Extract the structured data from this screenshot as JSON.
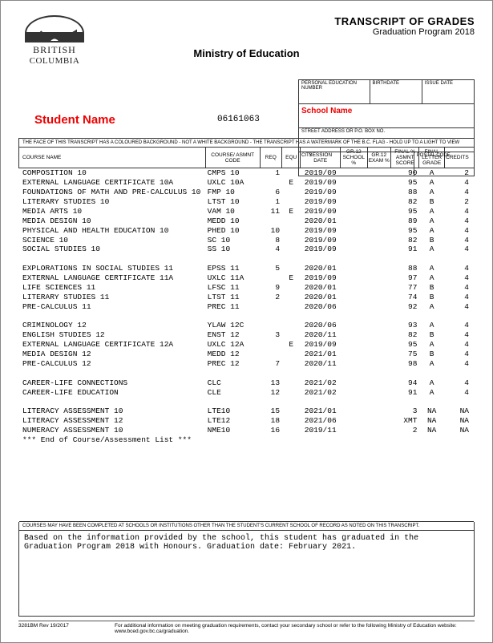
{
  "header": {
    "logo_line1": "BRITISH",
    "logo_line2": "COLUMBIA",
    "ministry": "Ministry of Education",
    "title1": "TRANSCRIPT OF GRADES",
    "title2": "Graduation Program 2018"
  },
  "info": {
    "pen_label": "PERSONAL EDUCATION NUMBER",
    "birth_label": "BIRTHDATE",
    "issue_label": "ISSUE DATE",
    "school_label": "",
    "school_name": "School Name",
    "addr_label": "STREET ADDRESS OR P.O. BOX NO.",
    "city_label": "CITY",
    "postal_label": "POSTAL CODE"
  },
  "student": {
    "name": "Student Name",
    "id": "06161063"
  },
  "disclaimer": "THE FACE OF THIS TRANSCRIPT HAS A COLOURED BACKGROUND - NOT A WHITE BACKGROUND - THE TRANSCRIPT HAS A WATERMARK OF THE B.C. FLAG - HOLD UP TO A LIGHT TO VIEW",
  "columns": {
    "name": "COURSE NAME",
    "code": "COURSE/ ASMNT CODE",
    "req": "REQ",
    "equ": "EQU",
    "sess": "SESSION DATE",
    "sch": "GR.12 SCHOOL %",
    "exam": "GR.12 EXAM %",
    "final": "FINAL % ASMNT SCORE",
    "letter": "FINAL LETTER GRADE",
    "cred": "CREDITS"
  },
  "groups": [
    [
      {
        "name": "COMPOSITION 10",
        "code": "CMPS 10",
        "req": "1",
        "equ": "",
        "sess": "2019/09",
        "sch": "",
        "exam": "",
        "final": "90",
        "letter": "A",
        "cred": "2"
      },
      {
        "name": "EXTERNAL LANGUAGE CERTIFICATE 10A",
        "code": "UXLC 10A",
        "req": "",
        "equ": "E",
        "sess": "2019/09",
        "sch": "",
        "exam": "",
        "final": "95",
        "letter": "A",
        "cred": "4"
      },
      {
        "name": "FOUNDATIONS OF MATH AND PRE-CALCULUS 10",
        "code": "FMP 10",
        "req": "6",
        "equ": "",
        "sess": "2019/09",
        "sch": "",
        "exam": "",
        "final": "88",
        "letter": "A",
        "cred": "4"
      },
      {
        "name": "LITERARY STUDIES 10",
        "code": "LTST 10",
        "req": "1",
        "equ": "",
        "sess": "2019/09",
        "sch": "",
        "exam": "",
        "final": "82",
        "letter": "B",
        "cred": "2"
      },
      {
        "name": "MEDIA ARTS 10",
        "code": "VAM 10",
        "req": "11",
        "equ": "E",
        "sess": "2019/09",
        "sch": "",
        "exam": "",
        "final": "95",
        "letter": "A",
        "cred": "4"
      },
      {
        "name": "MEDIA DESIGN 10",
        "code": "MEDD 10",
        "req": "",
        "equ": "",
        "sess": "2020/01",
        "sch": "",
        "exam": "",
        "final": "89",
        "letter": "A",
        "cred": "4"
      },
      {
        "name": "PHYSICAL AND HEALTH EDUCATION 10",
        "code": "PHED 10",
        "req": "10",
        "equ": "",
        "sess": "2019/09",
        "sch": "",
        "exam": "",
        "final": "95",
        "letter": "A",
        "cred": "4"
      },
      {
        "name": "SCIENCE 10",
        "code": "SC 10",
        "req": "8",
        "equ": "",
        "sess": "2019/09",
        "sch": "",
        "exam": "",
        "final": "82",
        "letter": "B",
        "cred": "4"
      },
      {
        "name": "SOCIAL STUDIES 10",
        "code": "SS 10",
        "req": "4",
        "equ": "",
        "sess": "2019/09",
        "sch": "",
        "exam": "",
        "final": "91",
        "letter": "A",
        "cred": "4"
      }
    ],
    [
      {
        "name": "EXPLORATIONS IN SOCIAL STUDIES 11",
        "code": "EPSS 11",
        "req": "5",
        "equ": "",
        "sess": "2020/01",
        "sch": "",
        "exam": "",
        "final": "88",
        "letter": "A",
        "cred": "4"
      },
      {
        "name": "EXTERNAL LANGUAGE CERTIFICATE 11A",
        "code": "UXLC 11A",
        "req": "",
        "equ": "E",
        "sess": "2019/09",
        "sch": "",
        "exam": "",
        "final": "97",
        "letter": "A",
        "cred": "4"
      },
      {
        "name": "LIFE SCIENCES 11",
        "code": "LFSC 11",
        "req": "9",
        "equ": "",
        "sess": "2020/01",
        "sch": "",
        "exam": "",
        "final": "77",
        "letter": "B",
        "cred": "4"
      },
      {
        "name": "LITERARY STUDIES 11",
        "code": "LTST 11",
        "req": "2",
        "equ": "",
        "sess": "2020/01",
        "sch": "",
        "exam": "",
        "final": "74",
        "letter": "B",
        "cred": "4"
      },
      {
        "name": "PRE-CALCULUS 11",
        "code": "PREC 11",
        "req": "",
        "equ": "",
        "sess": "2020/06",
        "sch": "",
        "exam": "",
        "final": "92",
        "letter": "A",
        "cred": "4"
      }
    ],
    [
      {
        "name": "CRIMINOLOGY 12",
        "code": "YLAW 12C",
        "req": "",
        "equ": "",
        "sess": "2020/06",
        "sch": "",
        "exam": "",
        "final": "93",
        "letter": "A",
        "cred": "4"
      },
      {
        "name": "ENGLISH STUDIES 12",
        "code": "ENST 12",
        "req": "3",
        "equ": "",
        "sess": "2020/11",
        "sch": "",
        "exam": "",
        "final": "82",
        "letter": "B",
        "cred": "4"
      },
      {
        "name": "EXTERNAL LANGUAGE CERTIFICATE 12A",
        "code": "UXLC 12A",
        "req": "",
        "equ": "E",
        "sess": "2019/09",
        "sch": "",
        "exam": "",
        "final": "95",
        "letter": "A",
        "cred": "4"
      },
      {
        "name": "MEDIA DESIGN 12",
        "code": "MEDD 12",
        "req": "",
        "equ": "",
        "sess": "2021/01",
        "sch": "",
        "exam": "",
        "final": "75",
        "letter": "B",
        "cred": "4"
      },
      {
        "name": "PRE-CALCULUS 12",
        "code": "PREC 12",
        "req": "7",
        "equ": "",
        "sess": "2020/11",
        "sch": "",
        "exam": "",
        "final": "98",
        "letter": "A",
        "cred": "4"
      }
    ],
    [
      {
        "name": "CAREER-LIFE CONNECTIONS",
        "code": "CLC",
        "req": "13",
        "equ": "",
        "sess": "2021/02",
        "sch": "",
        "exam": "",
        "final": "94",
        "letter": "A",
        "cred": "4"
      },
      {
        "name": "CAREER-LIFE EDUCATION",
        "code": "CLE",
        "req": "12",
        "equ": "",
        "sess": "2021/02",
        "sch": "",
        "exam": "",
        "final": "91",
        "letter": "A",
        "cred": "4"
      }
    ],
    [
      {
        "name": "LITERACY ASSESSMENT 10",
        "code": "LTE10",
        "req": "15",
        "equ": "",
        "sess": "2021/01",
        "sch": "",
        "exam": "",
        "final": "3",
        "letter": "NA",
        "cred": "NA"
      },
      {
        "name": "LITERACY ASSESSMENT 12",
        "code": "LTE12",
        "req": "18",
        "equ": "",
        "sess": "2021/06",
        "sch": "",
        "exam": "",
        "final": "XMT",
        "letter": "NA",
        "cred": "NA"
      },
      {
        "name": "NUMERACY ASSESSMENT 10",
        "code": "NME10",
        "req": "16",
        "equ": "",
        "sess": "2019/11",
        "sch": "",
        "exam": "",
        "final": "2",
        "letter": "NA",
        "cred": "NA"
      },
      {
        "name": "*** End of Course/Assessment List ***",
        "code": "",
        "req": "",
        "equ": "",
        "sess": "",
        "sch": "",
        "exam": "",
        "final": "",
        "letter": "",
        "cred": ""
      }
    ]
  ],
  "footer_note": "COURSES MAY HAVE BEEN COMPLETED AT SCHOOLS OR INSTITUTIONS OTHER THAN THE STUDENT'S CURRENT SCHOOL OF RECORD AS NOTED ON THIS TRANSCRIPT.",
  "grad_text": "Based on the information provided by the school, this student has graduated in the Graduation Program 2018 with Honours. Graduation date: February 2021.",
  "bottom": {
    "rev": "3281BM Rev 19/2017",
    "info": "For additional information on meeting graduation requirements, contact your secondary school or refer to the following Ministry of Education website: www.bced.gov.bc.ca/graduation."
  }
}
